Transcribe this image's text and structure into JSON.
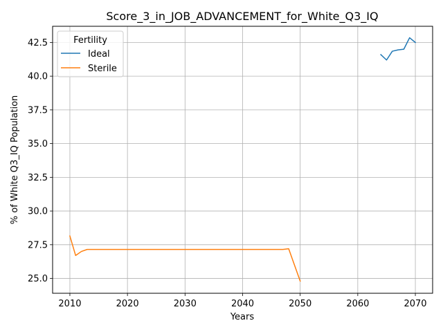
{
  "chart_data": {
    "type": "line",
    "title": "Score_3_in_JOB_ADVANCEMENT_for_White_Q3_IQ",
    "xlabel": "Years",
    "ylabel": "% of White Q3_IQ Population",
    "xlim": [
      2007,
      2073
    ],
    "ylim": [
      23.9,
      43.7
    ],
    "xticks": [
      2010,
      2020,
      2030,
      2040,
      2050,
      2060,
      2070
    ],
    "yticks": [
      25.0,
      27.5,
      30.0,
      32.5,
      35.0,
      37.5,
      40.0,
      42.5
    ],
    "xtick_labels": [
      "2010",
      "2020",
      "2030",
      "2040",
      "2050",
      "2060",
      "2070"
    ],
    "ytick_labels": [
      "25.0",
      "27.5",
      "30.0",
      "32.5",
      "35.0",
      "37.5",
      "40.0",
      "42.5"
    ],
    "grid": true,
    "legend": {
      "title": "Fertility",
      "position": "top-left"
    },
    "series": [
      {
        "name": "Ideal",
        "color": "#1f77b4",
        "x": [
          2064,
          2065,
          2066,
          2067,
          2068,
          2069,
          2070
        ],
        "values": [
          41.6,
          41.2,
          41.85,
          41.95,
          42.0,
          42.85,
          42.5
        ]
      },
      {
        "name": "Sterile",
        "color": "#ff7f0e",
        "x": [
          2010,
          2011,
          2012,
          2013,
          2014,
          2015,
          2020,
          2025,
          2030,
          2035,
          2040,
          2045,
          2047,
          2048,
          2049,
          2050
        ],
        "values": [
          28.15,
          26.7,
          27.0,
          27.15,
          27.15,
          27.15,
          27.15,
          27.15,
          27.15,
          27.15,
          27.15,
          27.15,
          27.15,
          27.2,
          26.0,
          24.8
        ]
      }
    ]
  }
}
